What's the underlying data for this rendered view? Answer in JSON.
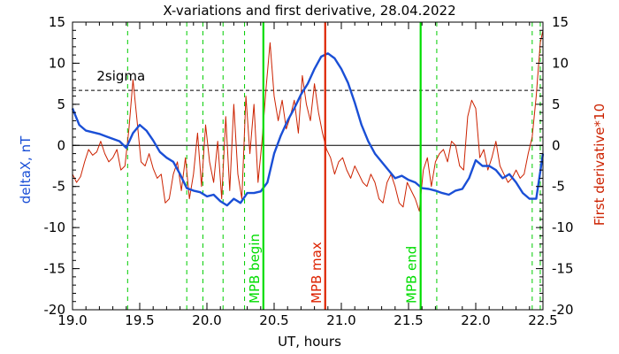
{
  "chart_data": {
    "type": "line",
    "title": "X-variations and first derivative, 28.04.2022",
    "xlabel": "UT, hours",
    "ylabel_left": "deltaX, nT",
    "ylabel_right": "First derivative*10",
    "xlim": [
      19.0,
      22.5
    ],
    "ylim_left": [
      -20,
      15
    ],
    "ylim_right": [
      -20,
      15
    ],
    "x_ticks": [
      "19.0",
      "19.5",
      "20.0",
      "20.5",
      "21.0",
      "21.5",
      "22.0",
      "22.5"
    ],
    "y_ticks_left": [
      "15",
      "10",
      "5",
      "0",
      "-5",
      "-10",
      "-15",
      "-20"
    ],
    "y_ticks_right": [
      "15",
      "10",
      "5",
      "0",
      "-5",
      "-10",
      "-15",
      "-20"
    ],
    "threshold": {
      "label": "2sigma",
      "value": 6.7,
      "style": "dashed"
    },
    "vertical_lines": [
      {
        "x": 20.42,
        "label": "MPB begin",
        "color": "#00dd00",
        "style": "solid"
      },
      {
        "x": 20.88,
        "label": "MPB max",
        "color": "#dd2200",
        "style": "solid"
      },
      {
        "x": 21.59,
        "label": "MPB end",
        "color": "#00dd00",
        "style": "solid"
      }
    ],
    "dashed_markers": {
      "color": "#00cc00",
      "x": [
        19.41,
        19.85,
        19.97,
        20.12,
        20.28,
        21.71,
        22.42,
        22.48
      ]
    },
    "series": [
      {
        "name": "deltaX",
        "axis": "left",
        "color": "#1a4fd6",
        "x": [
          19.0,
          19.05,
          19.1,
          19.15,
          19.2,
          19.25,
          19.3,
          19.35,
          19.4,
          19.45,
          19.5,
          19.55,
          19.6,
          19.65,
          19.7,
          19.75,
          19.8,
          19.85,
          19.9,
          19.95,
          20.0,
          20.05,
          20.1,
          20.15,
          20.2,
          20.25,
          20.3,
          20.35,
          20.4,
          20.45,
          20.5,
          20.55,
          20.6,
          20.65,
          20.7,
          20.75,
          20.8,
          20.85,
          20.9,
          20.95,
          21.0,
          21.05,
          21.1,
          21.15,
          21.2,
          21.25,
          21.3,
          21.35,
          21.4,
          21.45,
          21.5,
          21.55,
          21.6,
          21.65,
          21.7,
          21.75,
          21.8,
          21.85,
          21.9,
          21.95,
          22.0,
          22.05,
          22.1,
          22.15,
          22.2,
          22.25,
          22.3,
          22.35,
          22.4,
          22.45,
          22.5
        ],
        "y": [
          4.5,
          2.5,
          1.8,
          1.6,
          1.4,
          1.1,
          0.8,
          0.5,
          -0.3,
          1.5,
          2.5,
          1.8,
          0.6,
          -0.8,
          -1.5,
          -2.0,
          -3.5,
          -5.2,
          -5.5,
          -5.7,
          -6.2,
          -6.0,
          -6.8,
          -7.3,
          -6.5,
          -7.0,
          -5.8,
          -5.8,
          -5.6,
          -4.5,
          -1.0,
          1.2,
          3.0,
          4.5,
          6.2,
          7.5,
          9.3,
          10.8,
          11.2,
          10.6,
          9.3,
          7.6,
          5.2,
          2.5,
          0.5,
          -1.0,
          -2.0,
          -3.0,
          -4.0,
          -3.7,
          -4.2,
          -4.5,
          -5.2,
          -5.3,
          -5.5,
          -5.8,
          -6.0,
          -5.5,
          -5.3,
          -4.0,
          -1.8,
          -2.5,
          -2.5,
          -3.0,
          -4.0,
          -3.5,
          -4.5,
          -5.8,
          -6.5,
          -6.5,
          -1.0
        ]
      },
      {
        "name": "First derivative*10",
        "axis": "right",
        "color": "#cc2200",
        "x": [
          19.0,
          19.03,
          19.06,
          19.09,
          19.12,
          19.15,
          19.18,
          19.21,
          19.24,
          19.27,
          19.3,
          19.33,
          19.36,
          19.39,
          19.42,
          19.45,
          19.48,
          19.51,
          19.54,
          19.57,
          19.6,
          19.63,
          19.66,
          19.69,
          19.72,
          19.75,
          19.78,
          19.81,
          19.84,
          19.87,
          19.9,
          19.93,
          19.96,
          19.99,
          20.02,
          20.05,
          20.08,
          20.11,
          20.14,
          20.17,
          20.2,
          20.23,
          20.26,
          20.29,
          20.32,
          20.35,
          20.38,
          20.41,
          20.44,
          20.47,
          20.5,
          20.53,
          20.56,
          20.59,
          20.62,
          20.65,
          20.68,
          20.71,
          20.74,
          20.77,
          20.8,
          20.83,
          20.86,
          20.89,
          20.92,
          20.95,
          20.98,
          21.01,
          21.04,
          21.07,
          21.1,
          21.13,
          21.16,
          21.19,
          21.22,
          21.25,
          21.28,
          21.31,
          21.34,
          21.37,
          21.4,
          21.43,
          21.46,
          21.49,
          21.52,
          21.55,
          21.58,
          21.61,
          21.64,
          21.67,
          21.7,
          21.73,
          21.76,
          21.79,
          21.82,
          21.85,
          21.88,
          21.91,
          21.94,
          21.97,
          22.0,
          22.03,
          22.06,
          22.09,
          22.12,
          22.15,
          22.18,
          22.21,
          22.24,
          22.27,
          22.3,
          22.33,
          22.36,
          22.39,
          22.42,
          22.45,
          22.48,
          22.5
        ],
        "y": [
          -3.5,
          -4.5,
          -3.8,
          -2.0,
          -0.5,
          -1.2,
          -0.8,
          0.5,
          -1.0,
          -2.0,
          -1.5,
          -0.5,
          -3.0,
          -2.5,
          2.0,
          8.0,
          3.0,
          -2.0,
          -2.5,
          -1.0,
          -2.8,
          -4.0,
          -3.5,
          -7.0,
          -6.5,
          -3.5,
          -2.0,
          -5.5,
          -1.5,
          -6.5,
          -3.5,
          1.5,
          -5.0,
          2.5,
          -2.0,
          -4.5,
          0.5,
          -6.5,
          3.5,
          -5.5,
          5.0,
          -3.5,
          -6.5,
          6.0,
          -1.0,
          5.0,
          -4.5,
          0.5,
          7.0,
          12.5,
          6.0,
          3.0,
          5.5,
          2.0,
          3.5,
          5.5,
          1.5,
          8.5,
          5.0,
          3.0,
          7.5,
          4.0,
          1.5,
          -0.5,
          -1.5,
          -3.5,
          -2.0,
          -1.5,
          -3.0,
          -4.0,
          -2.5,
          -3.5,
          -4.5,
          -5.0,
          -3.5,
          -4.5,
          -6.5,
          -7.0,
          -4.5,
          -3.5,
          -5.0,
          -7.0,
          -7.5,
          -4.5,
          -5.5,
          -6.5,
          -8.0,
          -3.0,
          -1.5,
          -5.0,
          -2.0,
          -1.0,
          -0.5,
          -2.0,
          0.5,
          0.0,
          -2.5,
          -3.0,
          3.5,
          5.5,
          4.5,
          -1.5,
          -0.5,
          -3.0,
          -1.5,
          0.5,
          -2.5,
          -3.5,
          -4.5,
          -4.0,
          -3.0,
          -4.0,
          -3.5,
          -1.0,
          1.0,
          6.0,
          12.5,
          14.0
        ]
      }
    ]
  }
}
